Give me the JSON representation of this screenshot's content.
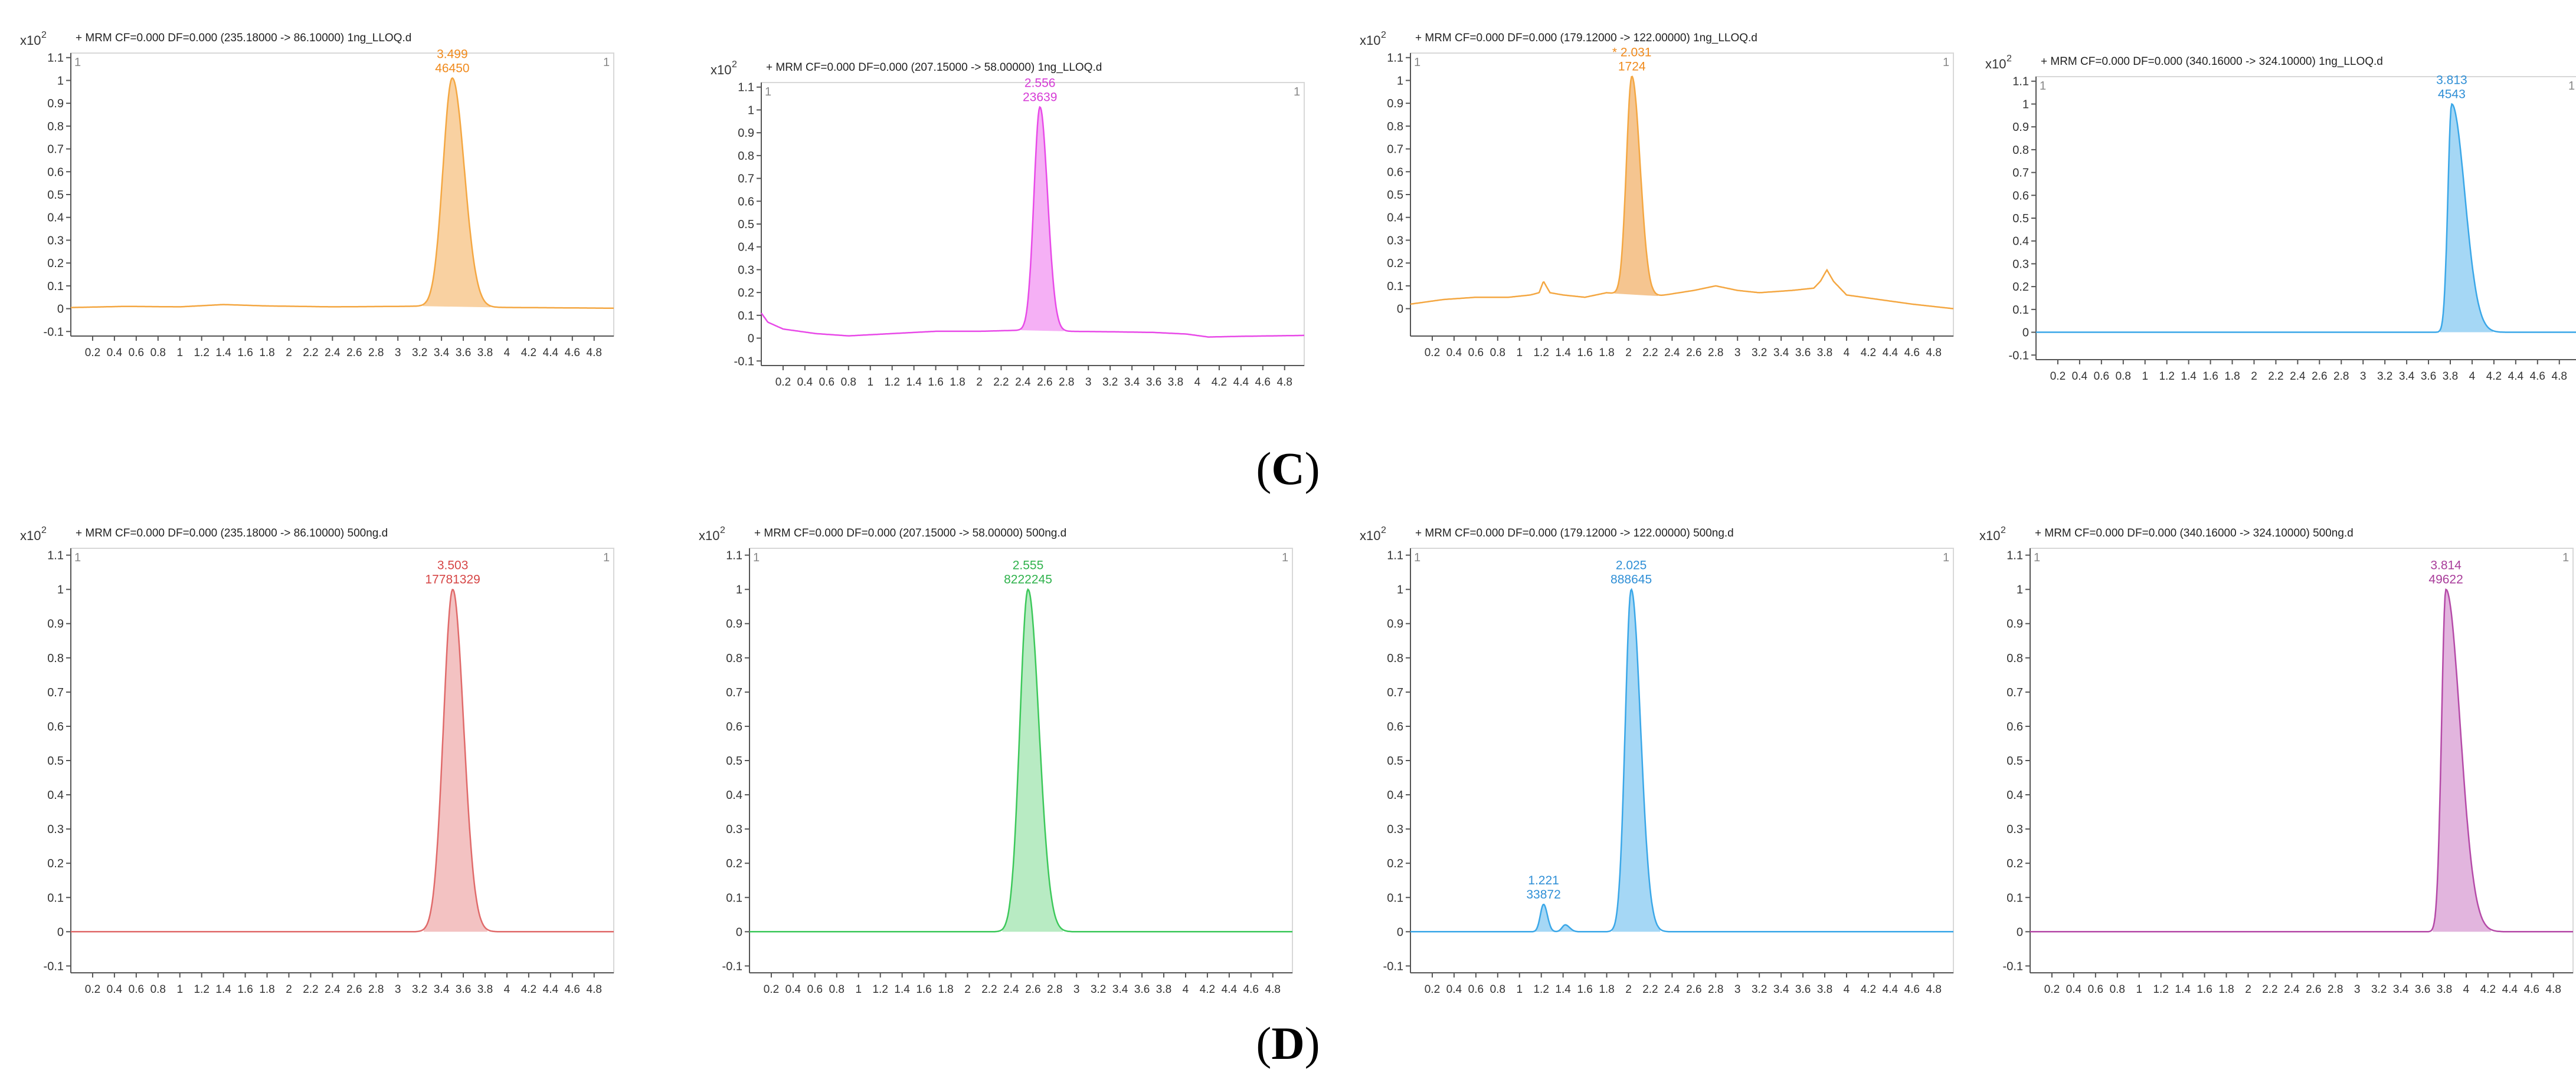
{
  "panel_labels": {
    "C": {
      "open": "(",
      "letter": "C",
      "close": ")"
    },
    "D": {
      "open": "(",
      "letter": "D",
      "close": ")"
    }
  },
  "chart_data": [
    {
      "type": "line",
      "panel": "C",
      "index": 1,
      "title": "+ MRM CF=0.000 DF=0.000 (235.18000 -> 86.10000) 1ng_LLOQ.d",
      "y_multiplier": "x10",
      "y_exponent": "2",
      "corner_left": "1",
      "corner_right": "1",
      "color": "#f4a742",
      "fill": "#f7c68a",
      "xlim": [
        0,
        4.98
      ],
      "ylim": [
        -0.12,
        1.12
      ],
      "x_ticks": [
        "0.2",
        "0.4",
        "0.6",
        "0.8",
        "1",
        "1.2",
        "1.4",
        "1.6",
        "1.8",
        "2",
        "2.2",
        "2.4",
        "2.6",
        "2.8",
        "3",
        "3.2",
        "3.4",
        "3.6",
        "3.8",
        "4",
        "4.2",
        "4.4",
        "4.6",
        "4.8"
      ],
      "y_ticks": [
        "-0.1",
        "0",
        "0.1",
        "0.2",
        "0.3",
        "0.4",
        "0.5",
        "0.6",
        "0.7",
        "0.8",
        "0.9",
        "1",
        "1.1"
      ],
      "baseline": [
        [
          0,
          0.005
        ],
        [
          0.5,
          0.01
        ],
        [
          1.0,
          0.008
        ],
        [
          1.4,
          0.018
        ],
        [
          1.8,
          0.012
        ],
        [
          2.4,
          0.008
        ],
        [
          3.0,
          0.01
        ],
        [
          3.4,
          0.012
        ],
        [
          3.8,
          0.006
        ],
        [
          4.4,
          0.004
        ],
        [
          4.98,
          0.002
        ]
      ],
      "peaks": [
        {
          "rt": 3.499,
          "height": 1.0,
          "sigma_left": 0.085,
          "sigma_right": 0.11,
          "rt_label": "3.499",
          "area_label": "46450",
          "shaded": true
        }
      ],
      "label_color": "#f08a1c"
    },
    {
      "type": "line",
      "panel": "C",
      "index": 2,
      "title": "+ MRM CF=0.000 DF=0.000 (207.15000 -> 58.00000) 1ng_LLOQ.d",
      "y_multiplier": "x10",
      "y_exponent": "2",
      "corner_left": "1",
      "corner_right": "1",
      "color": "#e84ae8",
      "fill": "#f39cf3",
      "xlim": [
        0,
        4.98
      ],
      "ylim": [
        -0.12,
        1.12
      ],
      "x_ticks": [
        "0.2",
        "0.4",
        "0.6",
        "0.8",
        "1",
        "1.2",
        "1.4",
        "1.6",
        "1.8",
        "2",
        "2.2",
        "2.4",
        "2.6",
        "2.8",
        "3",
        "3.2",
        "3.4",
        "3.6",
        "3.8",
        "4",
        "4.2",
        "4.4",
        "4.6",
        "4.8"
      ],
      "y_ticks": [
        "-0.1",
        "0",
        "0.1",
        "0.2",
        "0.3",
        "0.4",
        "0.5",
        "0.6",
        "0.7",
        "0.8",
        "0.9",
        "1",
        "1.1"
      ],
      "baseline": [
        [
          0,
          0.11
        ],
        [
          0.06,
          0.07
        ],
        [
          0.2,
          0.04
        ],
        [
          0.5,
          0.02
        ],
        [
          0.8,
          0.01
        ],
        [
          1.2,
          0.02
        ],
        [
          1.6,
          0.03
        ],
        [
          2.0,
          0.03
        ],
        [
          2.4,
          0.035
        ],
        [
          2.8,
          0.03
        ],
        [
          3.2,
          0.028
        ],
        [
          3.6,
          0.025
        ],
        [
          3.9,
          0.018
        ],
        [
          4.1,
          0.005
        ],
        [
          4.4,
          0.008
        ],
        [
          4.98,
          0.012
        ]
      ],
      "peaks": [
        {
          "rt": 2.556,
          "height": 0.98,
          "sigma_left": 0.055,
          "sigma_right": 0.07,
          "rt_label": "2.556",
          "area_label": "23639",
          "shaded": true
        }
      ],
      "label_color": "#d63bd6"
    },
    {
      "type": "line",
      "panel": "C",
      "index": 3,
      "title": "+ MRM CF=0.000 DF=0.000 (179.12000 -> 122.00000) 1ng_LLOQ.d",
      "y_multiplier": "x10",
      "y_exponent": "2",
      "corner_left": "1",
      "corner_right": "1",
      "color": "#f4a742",
      "fill": "#f3b774",
      "xlim": [
        0,
        4.98
      ],
      "ylim": [
        -0.12,
        1.12
      ],
      "x_ticks": [
        "0.2",
        "0.4",
        "0.6",
        "0.8",
        "1",
        "1.2",
        "1.4",
        "1.6",
        "1.8",
        "2",
        "2.2",
        "2.4",
        "2.6",
        "2.8",
        "3",
        "3.2",
        "3.4",
        "3.6",
        "3.8",
        "4",
        "4.2",
        "4.4",
        "4.6",
        "4.8"
      ],
      "y_ticks": [
        "0",
        "0.1",
        "0.2",
        "0.3",
        "0.4",
        "0.5",
        "0.6",
        "0.7",
        "0.8",
        "0.9",
        "1",
        "1.1"
      ],
      "baseline": [
        [
          0,
          0.02
        ],
        [
          0.3,
          0.04
        ],
        [
          0.6,
          0.05
        ],
        [
          0.9,
          0.05
        ],
        [
          1.1,
          0.06
        ],
        [
          1.18,
          0.07
        ],
        [
          1.22,
          0.12
        ],
        [
          1.28,
          0.07
        ],
        [
          1.4,
          0.06
        ],
        [
          1.6,
          0.05
        ],
        [
          1.8,
          0.07
        ],
        [
          2.2,
          0.05
        ],
        [
          2.6,
          0.08
        ],
        [
          2.8,
          0.1
        ],
        [
          3.0,
          0.08
        ],
        [
          3.2,
          0.07
        ],
        [
          3.5,
          0.08
        ],
        [
          3.7,
          0.09
        ],
        [
          3.76,
          0.12
        ],
        [
          3.82,
          0.17
        ],
        [
          3.88,
          0.12
        ],
        [
          4.0,
          0.06
        ],
        [
          4.3,
          0.04
        ],
        [
          4.6,
          0.02
        ],
        [
          4.98,
          0.0
        ]
      ],
      "peaks": [
        {
          "rt": 2.031,
          "height": 0.96,
          "sigma_left": 0.05,
          "sigma_right": 0.075,
          "rt_label": "* 2.031",
          "area_label": "1724",
          "shaded": true
        }
      ],
      "label_color": "#f08a1c"
    },
    {
      "type": "line",
      "panel": "C",
      "index": 4,
      "title": "+ MRM CF=0.000 DF=0.000 (340.16000 -> 324.10000) 1ng_LLOQ.d",
      "y_multiplier": "x10",
      "y_exponent": "2",
      "corner_left": "1",
      "corner_right": "1",
      "color": "#3aa7e8",
      "fill": "#8fcdf2",
      "xlim": [
        0,
        4.98
      ],
      "ylim": [
        -0.12,
        1.12
      ],
      "x_ticks": [
        "0.2",
        "0.4",
        "0.6",
        "0.8",
        "1",
        "1.2",
        "1.4",
        "1.6",
        "1.8",
        "2",
        "2.2",
        "2.4",
        "2.6",
        "2.8",
        "3",
        "3.2",
        "3.4",
        "3.6",
        "3.8",
        "4",
        "4.2",
        "4.4",
        "4.6",
        "4.8"
      ],
      "y_ticks": [
        "-0.1",
        "0",
        "0.1",
        "0.2",
        "0.3",
        "0.4",
        "0.5",
        "0.6",
        "0.7",
        "0.8",
        "0.9",
        "1",
        "1.1"
      ],
      "baseline": [
        [
          0,
          0
        ],
        [
          4.98,
          0
        ]
      ],
      "peaks": [
        {
          "rt": 3.813,
          "height": 1.0,
          "sigma_left": 0.035,
          "sigma_right": 0.12,
          "rt_label": "3.813",
          "area_label": "4543",
          "shaded": true
        }
      ],
      "label_color": "#2f8fd6"
    },
    {
      "type": "line",
      "panel": "D",
      "index": 1,
      "title": "+ MRM CF=0.000 DF=0.000 (235.18000 -> 86.10000) 500ng.d",
      "y_multiplier": "x10",
      "y_exponent": "2",
      "corner_left": "1",
      "corner_right": "1",
      "color": "#e06a6a",
      "fill": "#f0b3b3",
      "xlim": [
        0,
        4.98
      ],
      "ylim": [
        -0.12,
        1.12
      ],
      "x_ticks": [
        "0.2",
        "0.4",
        "0.6",
        "0.8",
        "1",
        "1.2",
        "1.4",
        "1.6",
        "1.8",
        "2",
        "2.2",
        "2.4",
        "2.6",
        "2.8",
        "3",
        "3.2",
        "3.4",
        "3.6",
        "3.8",
        "4",
        "4.2",
        "4.4",
        "4.6",
        "4.8"
      ],
      "y_ticks": [
        "-0.1",
        "0",
        "0.1",
        "0.2",
        "0.3",
        "0.4",
        "0.5",
        "0.6",
        "0.7",
        "0.8",
        "0.9",
        "1",
        "1.1"
      ],
      "baseline": [
        [
          0,
          0
        ],
        [
          4.98,
          0
        ]
      ],
      "peaks": [
        {
          "rt": 3.503,
          "height": 1.0,
          "sigma_left": 0.085,
          "sigma_right": 0.1,
          "rt_label": "3.503",
          "area_label": "17781329",
          "shaded": true
        }
      ],
      "label_color": "#d64545"
    },
    {
      "type": "line",
      "panel": "D",
      "index": 2,
      "title": "+ MRM CF=0.000 DF=0.000 (207.15000 -> 58.00000) 500ng.d",
      "y_multiplier": "x10",
      "y_exponent": "2",
      "corner_left": "1",
      "corner_right": "1",
      "color": "#3cc85a",
      "fill": "#a6e6b4",
      "xlim": [
        0,
        4.98
      ],
      "ylim": [
        -0.12,
        1.12
      ],
      "x_ticks": [
        "0.2",
        "0.4",
        "0.6",
        "0.8",
        "1",
        "1.2",
        "1.4",
        "1.6",
        "1.8",
        "2",
        "2.2",
        "2.4",
        "2.6",
        "2.8",
        "3",
        "3.2",
        "3.4",
        "3.6",
        "3.8",
        "4",
        "4.2",
        "4.4",
        "4.6",
        "4.8"
      ],
      "y_ticks": [
        "-0.1",
        "0",
        "0.1",
        "0.2",
        "0.3",
        "0.4",
        "0.5",
        "0.6",
        "0.7",
        "0.8",
        "0.9",
        "1",
        "1.1"
      ],
      "baseline": [
        [
          0,
          0
        ],
        [
          4.98,
          0
        ]
      ],
      "peaks": [
        {
          "rt": 2.555,
          "height": 1.0,
          "sigma_left": 0.075,
          "sigma_right": 0.1,
          "rt_label": "2.555",
          "area_label": "8222245",
          "shaded": true
        }
      ],
      "label_color": "#2fb24c"
    },
    {
      "type": "line",
      "panel": "D",
      "index": 3,
      "title": "+ MRM CF=0.000 DF=0.000 (179.12000 -> 122.00000) 500ng.d",
      "y_multiplier": "x10",
      "y_exponent": "2",
      "corner_left": "1",
      "corner_right": "1",
      "color": "#3aa7e8",
      "fill": "#8fcdf2",
      "xlim": [
        0,
        4.98
      ],
      "ylim": [
        -0.12,
        1.12
      ],
      "x_ticks": [
        "0.2",
        "0.4",
        "0.6",
        "0.8",
        "1",
        "1.2",
        "1.4",
        "1.6",
        "1.8",
        "2",
        "2.2",
        "2.4",
        "2.6",
        "2.8",
        "3",
        "3.2",
        "3.4",
        "3.6",
        "3.8",
        "4",
        "4.2",
        "4.4",
        "4.6",
        "4.8"
      ],
      "y_ticks": [
        "-0.1",
        "0",
        "0.1",
        "0.2",
        "0.3",
        "0.4",
        "0.5",
        "0.6",
        "0.7",
        "0.8",
        "0.9",
        "1",
        "1.1"
      ],
      "baseline": [
        [
          0,
          0
        ],
        [
          4.98,
          0
        ]
      ],
      "peaks": [
        {
          "rt": 1.221,
          "height": 0.08,
          "sigma_left": 0.03,
          "sigma_right": 0.035,
          "rt_label": "1.221",
          "area_label": "33872",
          "shaded": true
        },
        {
          "rt": 1.42,
          "height": 0.02,
          "sigma_left": 0.03,
          "sigma_right": 0.04,
          "rt_label": "",
          "area_label": "",
          "shaded": true
        },
        {
          "rt": 2.025,
          "height": 1.0,
          "sigma_left": 0.055,
          "sigma_right": 0.085,
          "rt_label": "2.025",
          "area_label": "888645",
          "shaded": true
        }
      ],
      "label_color": "#2f8fd6"
    },
    {
      "type": "line",
      "panel": "D",
      "index": 4,
      "title": "+ MRM CF=0.000 DF=0.000 (340.16000 -> 324.10000) 500ng.d",
      "y_multiplier": "x10",
      "y_exponent": "2",
      "corner_left": "1",
      "corner_right": "1",
      "color": "#b54aa8",
      "fill": "#dba3d6",
      "xlim": [
        0,
        4.98
      ],
      "ylim": [
        -0.12,
        1.12
      ],
      "x_ticks": [
        "0.2",
        "0.4",
        "0.6",
        "0.8",
        "1",
        "1.2",
        "1.4",
        "1.6",
        "1.8",
        "2",
        "2.2",
        "2.4",
        "2.6",
        "2.8",
        "3",
        "3.2",
        "3.4",
        "3.6",
        "3.8",
        "4",
        "4.2",
        "4.4",
        "4.6",
        "4.8"
      ],
      "y_ticks": [
        "-0.1",
        "0",
        "0.1",
        "0.2",
        "0.3",
        "0.4",
        "0.5",
        "0.6",
        "0.7",
        "0.8",
        "0.9",
        "1",
        "1.1"
      ],
      "baseline": [
        [
          0,
          0
        ],
        [
          4.98,
          0
        ]
      ],
      "peaks": [
        {
          "rt": 3.814,
          "height": 1.0,
          "sigma_left": 0.04,
          "sigma_right": 0.13,
          "rt_label": "3.814",
          "area_label": "49622",
          "shaded": true
        }
      ],
      "label_color": "#a83c9a"
    }
  ]
}
